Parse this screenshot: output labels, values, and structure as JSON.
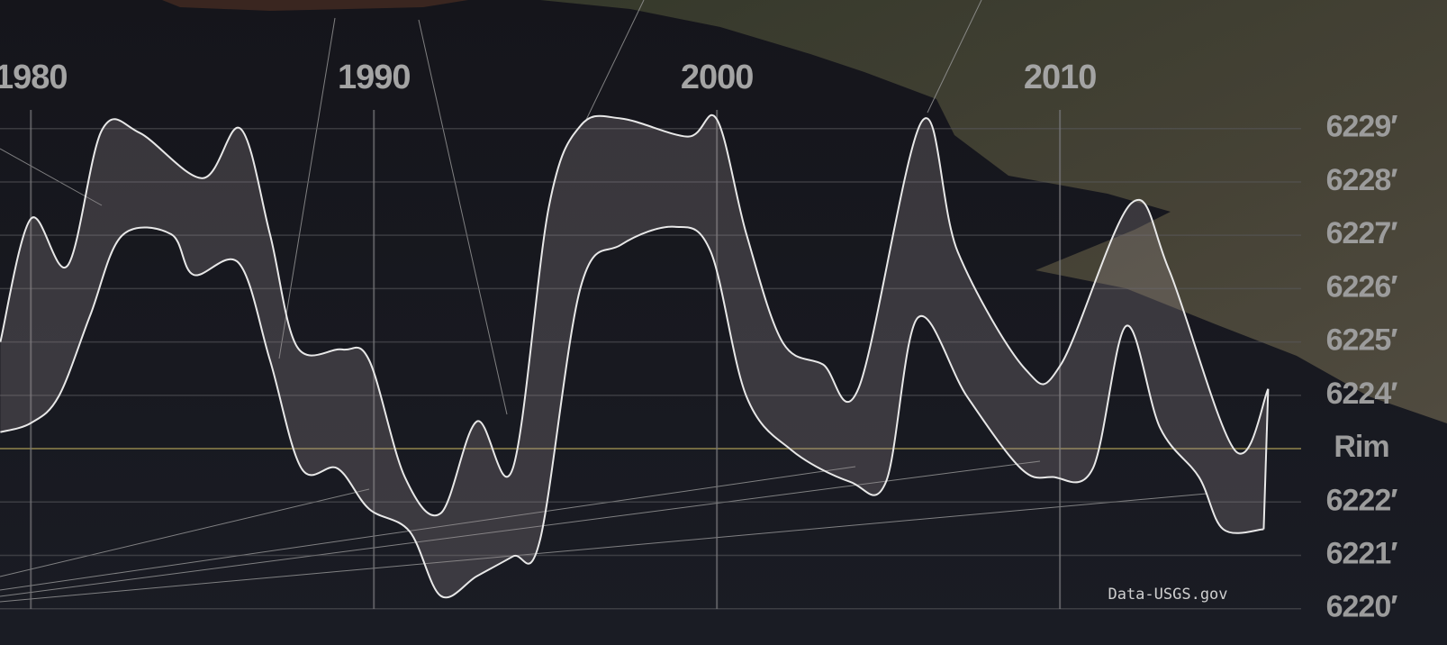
{
  "chart_data": {
    "type": "band",
    "series": [
      {
        "color": "#e8e8e8",
        "x": [
          1979.11,
          1980.0,
          1981.07,
          1982.07,
          1983.17,
          1985.01,
          1986.11,
          1986.97,
          1987.76,
          1989.07,
          1989.86,
          1990.9,
          1991.95,
          1993.0,
          1994.05,
          1995.1,
          1996.02,
          1997.2,
          1999.16,
          2000.0,
          2000.86,
          2001.91,
          2003.09,
          2004.14,
          2005.98,
          2007.02,
          2008.99,
          2010.03,
          2012.08,
          2013.18,
          2015.1,
          2016.07
        ],
        "values": [
          6225.0,
          6227.31,
          6226.43,
          6228.97,
          6228.92,
          6228.07,
          6229.0,
          6227.02,
          6224.91,
          6224.86,
          6224.66,
          6222.47,
          6221.79,
          6223.51,
          6222.63,
          6227.53,
          6229.05,
          6229.19,
          6228.85,
          6229.17,
          6227.02,
          6225.0,
          6224.58,
          6224.15,
          6229.14,
          6226.69,
          6224.49,
          6224.58,
          6227.6,
          6226.35,
          6222.97,
          6224.12
        ]
      },
      {
        "color": "#e8e8e8",
        "x": [
          1979.11,
          1980.0,
          1980.81,
          1981.73,
          1982.65,
          1984.09,
          1984.74,
          1986.06,
          1986.97,
          1987.89,
          1988.94,
          1989.86,
          1991.04,
          1991.95,
          1993.0,
          1994.05,
          1994.84,
          1996.02,
          1997.2,
          1998.77,
          1999.82,
          2000.86,
          2002.18,
          2003.88,
          2004.93,
          2005.85,
          2007.29,
          2008.86,
          2009.78,
          2010.96,
          2011.93,
          2012.92,
          2014.05,
          2014.76,
          2015.94
        ],
        "values": [
          6223.31,
          6223.48,
          6223.98,
          6225.5,
          6226.99,
          6227.02,
          6226.26,
          6226.48,
          6224.66,
          6222.63,
          6222.63,
          6221.87,
          6221.45,
          6220.24,
          6220.61,
          6220.98,
          6221.28,
          6226.01,
          6226.82,
          6227.16,
          6226.69,
          6223.98,
          6222.97,
          6222.38,
          6222.38,
          6225.45,
          6223.98,
          6222.63,
          6222.47,
          6222.63,
          6225.3,
          6223.39,
          6222.47,
          6221.49,
          6221.49
        ]
      }
    ],
    "band_color": "rgba(150,140,145,0.28)",
    "xlim": [
      1979.1,
      2016.9
    ],
    "xticks": [
      1980,
      1990,
      2000,
      2010
    ],
    "ylim": [
      6219.32,
      6231.41
    ],
    "yticks": [
      {
        "value": 6229,
        "label": "6229′"
      },
      {
        "value": 6228,
        "label": "6228′"
      },
      {
        "value": 6227,
        "label": "6227′"
      },
      {
        "value": 6226,
        "label": "6226′"
      },
      {
        "value": 6225,
        "label": "6225′"
      },
      {
        "value": 6224,
        "label": "6224′"
      },
      {
        "value": 6223,
        "label": "Rim"
      },
      {
        "value": 6222,
        "label": "6222′"
      },
      {
        "value": 6221,
        "label": "6221′"
      },
      {
        "value": 6220,
        "label": "6220′"
      }
    ],
    "highlight_tick": 6223,
    "grid": true,
    "source": "Data-USGS.gov"
  }
}
